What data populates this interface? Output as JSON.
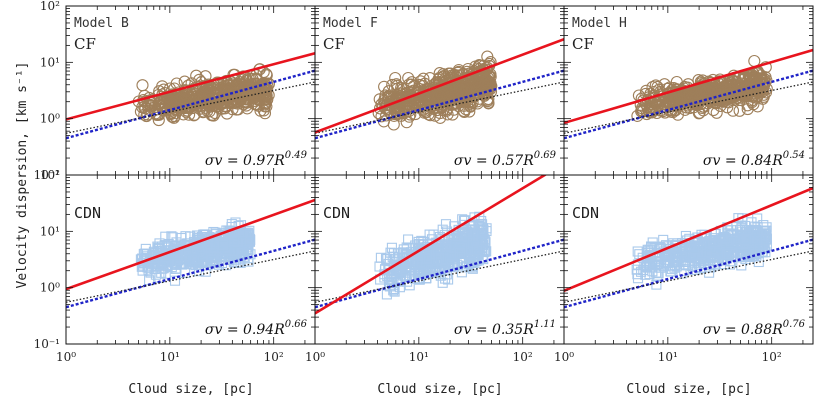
{
  "figure": {
    "ylabel": "Velocity dispersion, [km s⁻¹]",
    "xlabel": "Cloud size, [pc]"
  },
  "chart_data": [
    {
      "type": "scatter",
      "model": "Model B",
      "label": "CF",
      "marker": "circle",
      "color": "#9e7f5a",
      "fit": {
        "A": 0.97,
        "slope": 0.49,
        "text_coef": "σv = 0.97R",
        "text_exp": "0.49",
        "color": "#e8141e"
      },
      "ref_lines": [
        {
          "A": 0.45,
          "slope": 0.5,
          "color": "#1f23c8",
          "style": "dashed"
        },
        {
          "A": 0.55,
          "slope": 0.38,
          "color": "#222222",
          "style": "dotted"
        }
      ],
      "cloud": {
        "x_range": [
          5,
          90
        ],
        "center_log_y": 0.3,
        "spread": 0.45
      },
      "xlim": [
        1,
        250
      ],
      "ylim": [
        0.1,
        100
      ],
      "xlog": true,
      "ylog": true,
      "xticks": [
        "10⁰",
        "10¹",
        "10²"
      ],
      "yticks": [
        "10⁻¹",
        "10⁰",
        "10¹",
        "10²"
      ]
    },
    {
      "type": "scatter",
      "model": "Model F",
      "label": "CF",
      "marker": "circle",
      "color": "#9e7f5a",
      "fit": {
        "A": 0.57,
        "slope": 0.69,
        "text_coef": "σv = 0.57R",
        "text_exp": "0.69",
        "color": "#e8141e"
      },
      "ref_lines": [
        {
          "A": 0.45,
          "slope": 0.5,
          "color": "#1f23c8",
          "style": "dashed"
        },
        {
          "A": 0.55,
          "slope": 0.38,
          "color": "#222222",
          "style": "dotted"
        }
      ],
      "cloud": {
        "x_range": [
          4,
          50
        ],
        "center_log_y": 0.35,
        "spread": 0.55
      },
      "xlim": [
        1,
        250
      ],
      "ylim": [
        0.1,
        100
      ],
      "xlog": true,
      "ylog": true,
      "xticks": [
        "10⁰",
        "10¹",
        "10²"
      ],
      "yticks": []
    },
    {
      "type": "scatter",
      "model": "Model H",
      "label": "CF",
      "marker": "circle",
      "color": "#9e7f5a",
      "fit": {
        "A": 0.84,
        "slope": 0.54,
        "text_coef": "σv = 0.84R",
        "text_exp": "0.54",
        "color": "#e8141e"
      },
      "ref_lines": [
        {
          "A": 0.45,
          "slope": 0.5,
          "color": "#1f23c8",
          "style": "dashed"
        },
        {
          "A": 0.55,
          "slope": 0.38,
          "color": "#222222",
          "style": "dotted"
        }
      ],
      "cloud": {
        "x_range": [
          5,
          90
        ],
        "center_log_y": 0.35,
        "spread": 0.4
      },
      "xlim": [
        1,
        250
      ],
      "ylim": [
        0.1,
        100
      ],
      "xlog": true,
      "ylog": true,
      "xticks": [
        "10⁰",
        "10¹",
        "10²"
      ],
      "yticks": []
    },
    {
      "type": "scatter",
      "model": "",
      "label": "CDN",
      "marker": "square",
      "color": "#a9c9ec",
      "fit": {
        "A": 0.94,
        "slope": 0.66,
        "text_coef": "σv = 0.94R",
        "text_exp": "0.66",
        "color": "#e8141e"
      },
      "ref_lines": [
        {
          "A": 0.45,
          "slope": 0.5,
          "color": "#1f23c8",
          "style": "dashed"
        },
        {
          "A": 0.55,
          "slope": 0.38,
          "color": "#222222",
          "style": "dotted"
        }
      ],
      "cloud": {
        "x_range": [
          5,
          60
        ],
        "center_log_y": 0.55,
        "spread": 0.5
      },
      "xlim": [
        1,
        250
      ],
      "ylim": [
        0.1,
        100
      ],
      "xlog": true,
      "ylog": true,
      "xticks": [
        "10⁰",
        "10¹",
        "10²"
      ],
      "yticks": [
        "10⁻¹",
        "10⁰",
        "10¹",
        "10²"
      ]
    },
    {
      "type": "scatter",
      "model": "",
      "label": "CDN",
      "marker": "square",
      "color": "#a9c9ec",
      "fit": {
        "A": 0.35,
        "slope": 1.11,
        "text_coef": "σv = 0.35R",
        "text_exp": "1.11",
        "color": "#e8141e"
      },
      "ref_lines": [
        {
          "A": 0.45,
          "slope": 0.5,
          "color": "#1f23c8",
          "style": "dashed"
        },
        {
          "A": 0.55,
          "slope": 0.38,
          "color": "#222222",
          "style": "dotted"
        }
      ],
      "cloud": {
        "x_range": [
          4,
          45
        ],
        "center_log_y": 0.4,
        "spread": 0.6
      },
      "xlim": [
        1,
        250
      ],
      "ylim": [
        0.1,
        100
      ],
      "xlog": true,
      "ylog": true,
      "xticks": [
        "10⁰",
        "10¹",
        "10²"
      ],
      "yticks": []
    },
    {
      "type": "scatter",
      "model": "",
      "label": "CDN",
      "marker": "square",
      "color": "#a9c9ec",
      "fit": {
        "A": 0.88,
        "slope": 0.76,
        "text_coef": "σv = 0.88R",
        "text_exp": "0.76",
        "color": "#e8141e"
      },
      "ref_lines": [
        {
          "A": 0.45,
          "slope": 0.5,
          "color": "#1f23c8",
          "style": "dashed"
        },
        {
          "A": 0.55,
          "slope": 0.38,
          "color": "#222222",
          "style": "dotted"
        }
      ],
      "cloud": {
        "x_range": [
          5,
          90
        ],
        "center_log_y": 0.55,
        "spread": 0.45
      },
      "xlim": [
        1,
        250
      ],
      "ylim": [
        0.1,
        100
      ],
      "xlog": true,
      "ylog": true,
      "xticks": [
        "10⁰",
        "10¹",
        "10²"
      ],
      "yticks": []
    }
  ]
}
